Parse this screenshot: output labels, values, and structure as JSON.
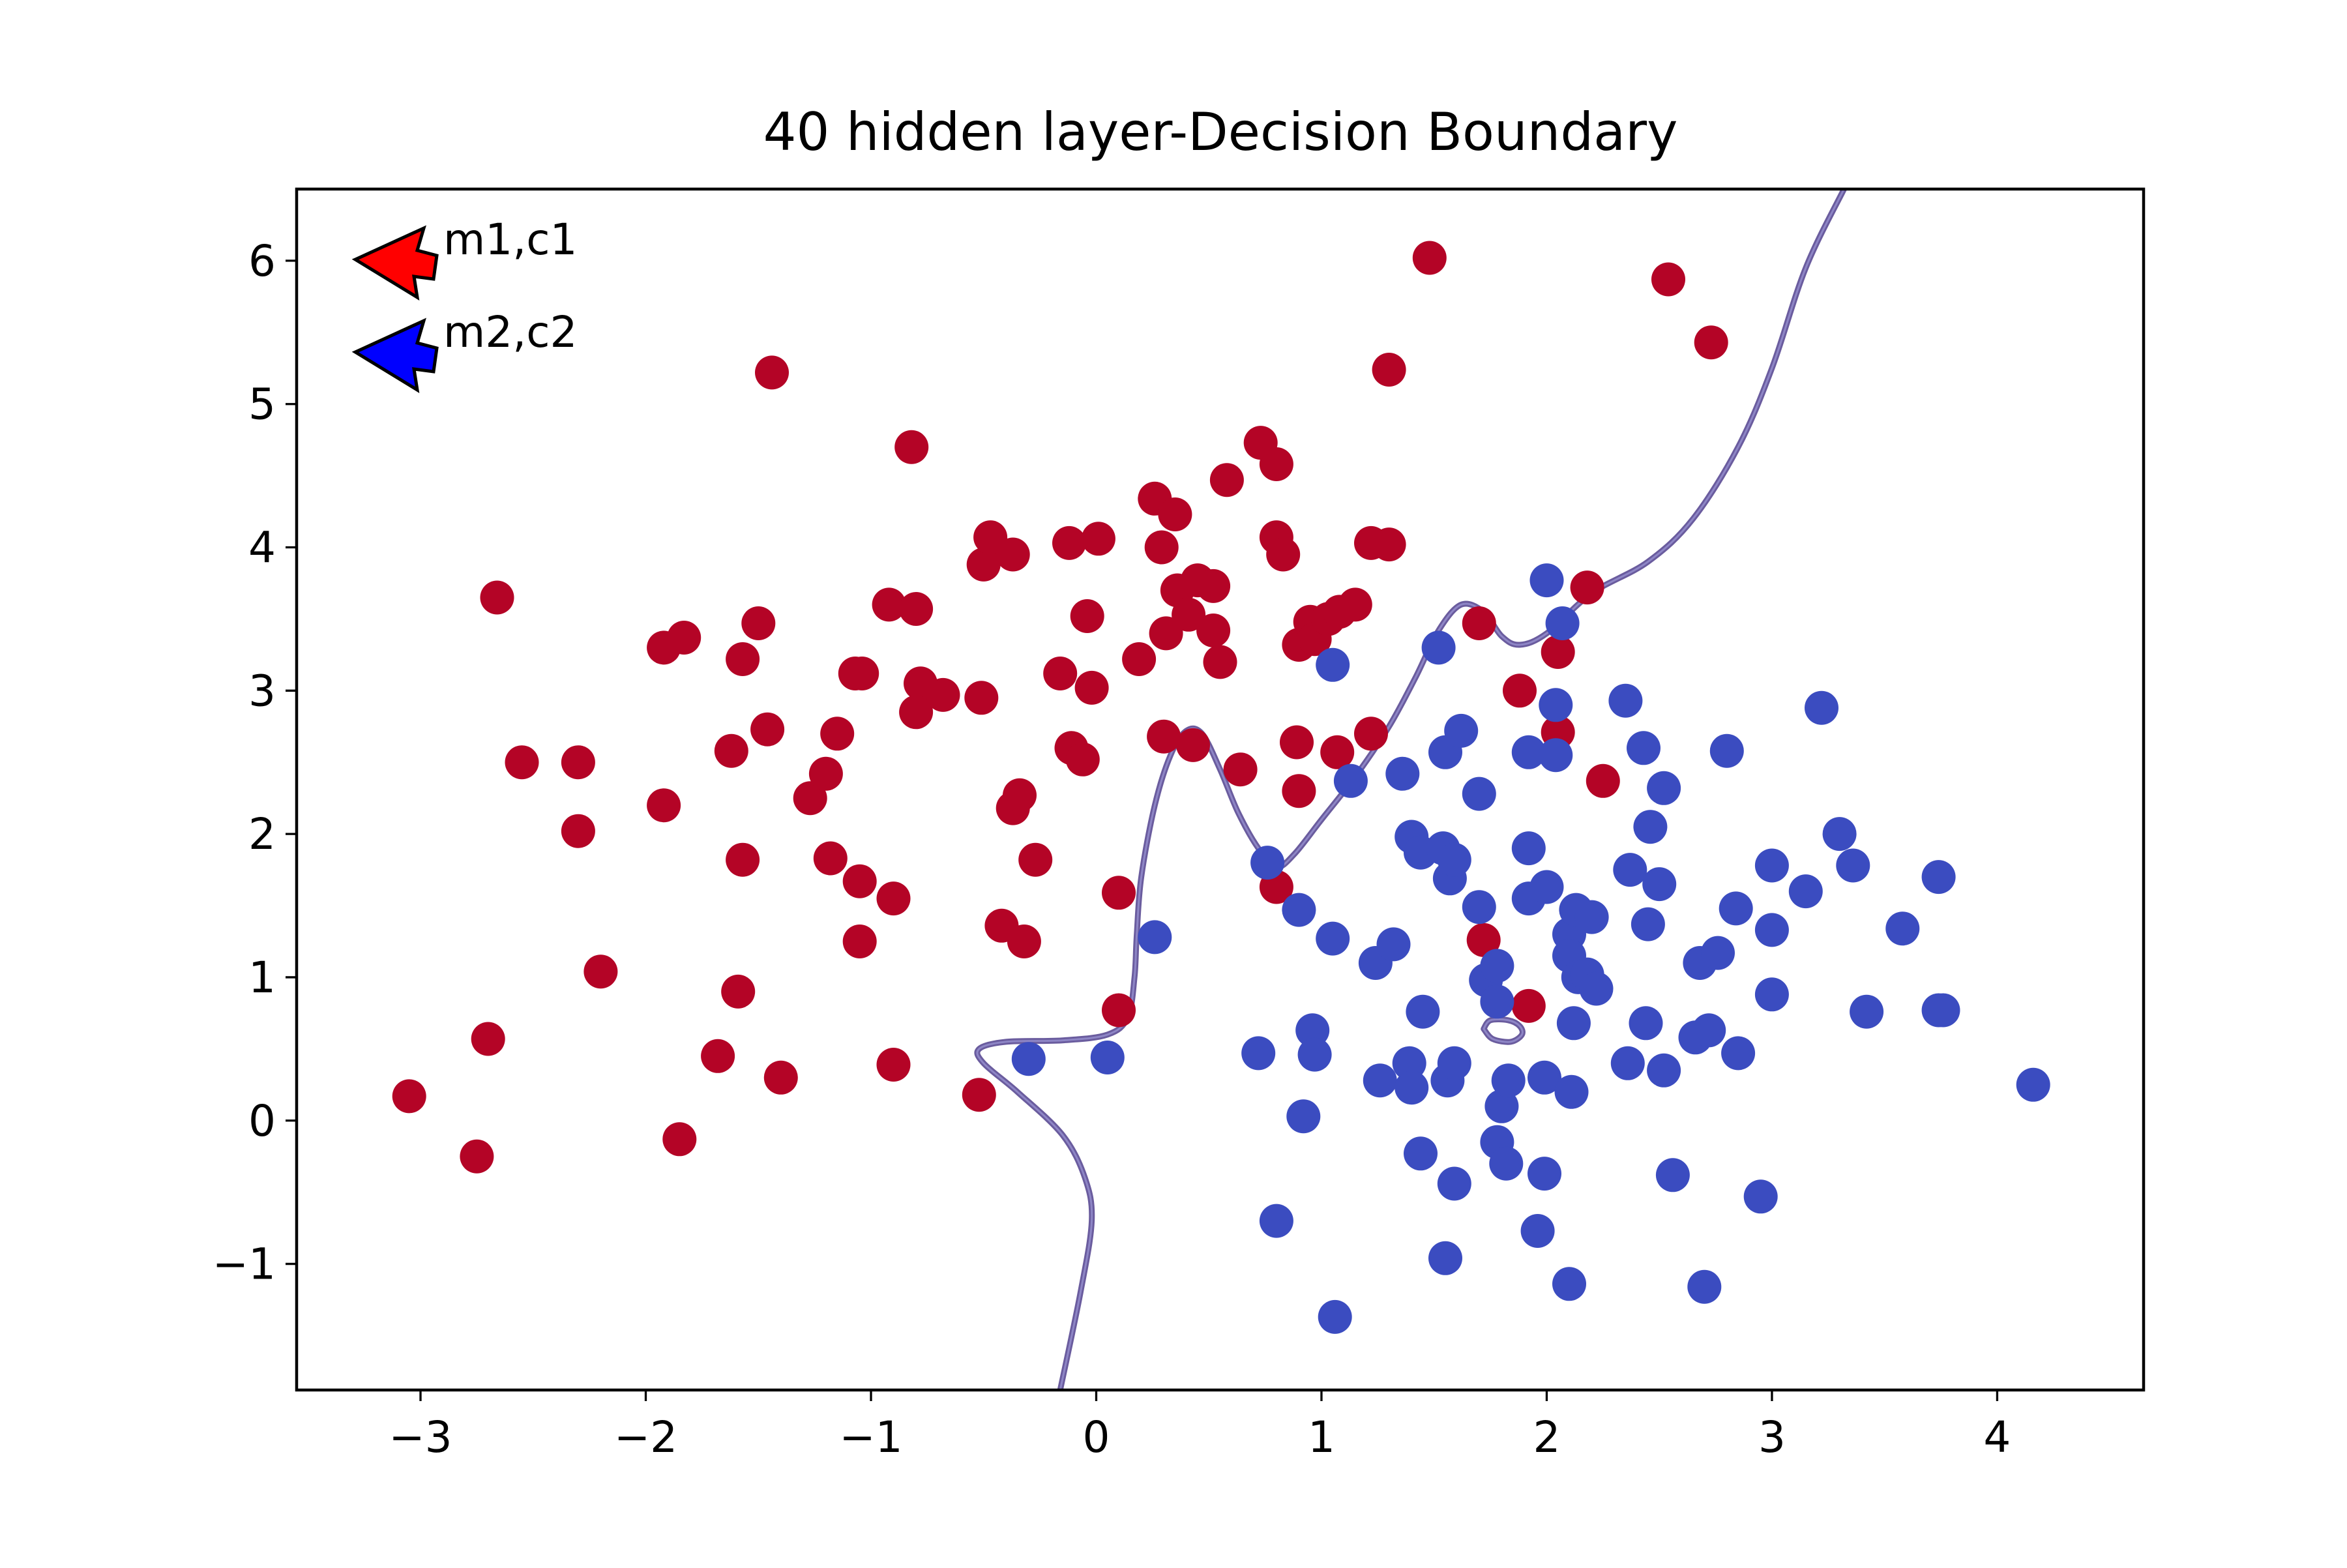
{
  "chart_data": {
    "type": "scatter",
    "title": "40 hidden layer-Decision Boundary",
    "xlabel": "",
    "ylabel": "",
    "xlim": [
      -3.55,
      4.65
    ],
    "ylim": [
      -1.88,
      6.5
    ],
    "xticks": [
      {
        "value": -3,
        "label": "−3"
      },
      {
        "value": -2,
        "label": "−2"
      },
      {
        "value": -1,
        "label": "−1"
      },
      {
        "value": 0,
        "label": "0"
      },
      {
        "value": 1,
        "label": "1"
      },
      {
        "value": 2,
        "label": "2"
      },
      {
        "value": 3,
        "label": "3"
      },
      {
        "value": 4,
        "label": "4"
      }
    ],
    "yticks": [
      {
        "value": -1,
        "label": "−1"
      },
      {
        "value": 0,
        "label": "0"
      },
      {
        "value": 1,
        "label": "1"
      },
      {
        "value": 2,
        "label": "2"
      },
      {
        "value": 3,
        "label": "3"
      },
      {
        "value": 4,
        "label": "4"
      },
      {
        "value": 5,
        "label": "5"
      },
      {
        "value": 6,
        "label": "6"
      }
    ],
    "grid": false,
    "legend_position": "top-left",
    "legend": [
      {
        "label": "m1,c1",
        "color": "#ff0000",
        "marker": "arrow-left"
      },
      {
        "label": "m2,c2",
        "color": "#0000ff",
        "marker": "arrow-left"
      }
    ],
    "colors": {
      "class0": "#b40426",
      "class1": "#3b4cc0",
      "boundary": "#6a5c9e"
    },
    "series": [
      {
        "class": 0,
        "color": "#b40426",
        "points": [
          [
            -3.05,
            0.17
          ],
          [
            -2.75,
            -0.25
          ],
          [
            -2.7,
            0.57
          ],
          [
            -2.66,
            3.65
          ],
          [
            -2.55,
            2.5
          ],
          [
            -2.3,
            2.5
          ],
          [
            -2.3,
            2.02
          ],
          [
            -2.2,
            1.04
          ],
          [
            -1.92,
            3.3
          ],
          [
            -1.92,
            2.2
          ],
          [
            -1.83,
            3.37
          ],
          [
            -1.85,
            -0.13
          ],
          [
            -1.68,
            0.45
          ],
          [
            -1.62,
            2.58
          ],
          [
            -1.57,
            3.22
          ],
          [
            -1.57,
            1.82
          ],
          [
            -1.59,
            0.9
          ],
          [
            -1.5,
            3.47
          ],
          [
            -1.46,
            2.73
          ],
          [
            -1.44,
            5.22
          ],
          [
            -1.4,
            0.3
          ],
          [
            -1.27,
            2.25
          ],
          [
            -1.2,
            2.42
          ],
          [
            -1.18,
            1.83
          ],
          [
            -1.15,
            2.7
          ],
          [
            -1.07,
            3.12
          ],
          [
            -1.04,
            3.12
          ],
          [
            -1.05,
            1.67
          ],
          [
            -1.05,
            1.25
          ],
          [
            -0.92,
            3.6
          ],
          [
            -0.9,
            1.55
          ],
          [
            -0.9,
            0.39
          ],
          [
            -0.82,
            4.7
          ],
          [
            -0.8,
            3.57
          ],
          [
            -0.78,
            3.05
          ],
          [
            -0.8,
            2.85
          ],
          [
            -0.68,
            2.97
          ],
          [
            -0.51,
            2.95
          ],
          [
            -0.5,
            3.88
          ],
          [
            -0.47,
            4.07
          ],
          [
            -0.42,
            1.36
          ],
          [
            -0.37,
            3.95
          ],
          [
            -0.37,
            2.18
          ],
          [
            -0.34,
            2.27
          ],
          [
            -0.32,
            1.25
          ],
          [
            -0.27,
            1.82
          ],
          [
            -0.52,
            0.18
          ],
          [
            -0.16,
            3.12
          ],
          [
            -0.12,
            4.03
          ],
          [
            -0.11,
            2.6
          ],
          [
            -0.06,
            2.52
          ],
          [
            -0.04,
            3.52
          ],
          [
            -0.02,
            3.02
          ],
          [
            0.01,
            4.06
          ],
          [
            0.1,
            1.59
          ],
          [
            0.1,
            0.77
          ],
          [
            0.19,
            3.22
          ],
          [
            0.26,
            4.34
          ],
          [
            0.29,
            4.0
          ],
          [
            0.31,
            3.4
          ],
          [
            0.3,
            2.68
          ],
          [
            0.35,
            4.23
          ],
          [
            0.36,
            3.7
          ],
          [
            0.41,
            3.53
          ],
          [
            0.43,
            2.62
          ],
          [
            0.45,
            3.77
          ],
          [
            0.52,
            3.42
          ],
          [
            0.52,
            3.73
          ],
          [
            0.55,
            3.2
          ],
          [
            0.58,
            4.47
          ],
          [
            0.64,
            2.45
          ],
          [
            0.73,
            4.73
          ],
          [
            0.8,
            4.58
          ],
          [
            0.8,
            4.07
          ],
          [
            0.83,
            3.95
          ],
          [
            0.8,
            1.63
          ],
          [
            0.89,
            2.64
          ],
          [
            0.9,
            2.3
          ],
          [
            0.9,
            3.32
          ],
          [
            0.95,
            3.48
          ],
          [
            0.97,
            3.36
          ],
          [
            1.03,
            3.5
          ],
          [
            1.07,
            2.57
          ],
          [
            1.08,
            3.55
          ],
          [
            1.15,
            3.6
          ],
          [
            1.22,
            2.7
          ],
          [
            1.22,
            4.03
          ],
          [
            1.3,
            4.02
          ],
          [
            1.3,
            5.24
          ],
          [
            1.48,
            6.02
          ],
          [
            1.7,
            3.47
          ],
          [
            1.72,
            1.26
          ],
          [
            1.88,
            3.0
          ],
          [
            1.92,
            0.8
          ],
          [
            2.05,
            2.71
          ],
          [
            2.05,
            3.27
          ],
          [
            2.18,
            3.72
          ],
          [
            2.25,
            2.37
          ],
          [
            2.54,
            5.87
          ],
          [
            2.73,
            5.43
          ]
        ]
      },
      {
        "class": 1,
        "color": "#3b4cc0",
        "points": [
          [
            -0.3,
            0.43
          ],
          [
            0.05,
            0.44
          ],
          [
            0.26,
            1.28
          ],
          [
            0.72,
            0.47
          ],
          [
            0.76,
            1.8
          ],
          [
            0.8,
            -0.7
          ],
          [
            0.9,
            1.47
          ],
          [
            0.92,
            0.03
          ],
          [
            0.96,
            0.63
          ],
          [
            0.97,
            0.46
          ],
          [
            1.05,
            3.18
          ],
          [
            1.05,
            1.27
          ],
          [
            1.06,
            -1.37
          ],
          [
            1.13,
            2.37
          ],
          [
            1.24,
            1.1
          ],
          [
            1.26,
            0.28
          ],
          [
            1.32,
            1.23
          ],
          [
            1.36,
            2.42
          ],
          [
            1.39,
            0.4
          ],
          [
            1.4,
            0.23
          ],
          [
            1.4,
            1.98
          ],
          [
            1.44,
            1.87
          ],
          [
            1.44,
            -0.23
          ],
          [
            1.45,
            0.76
          ],
          [
            1.52,
            3.3
          ],
          [
            1.54,
            1.9
          ],
          [
            1.55,
            2.57
          ],
          [
            1.55,
            -0.96
          ],
          [
            1.56,
            0.28
          ],
          [
            1.57,
            1.69
          ],
          [
            1.59,
            1.82
          ],
          [
            1.59,
            0.4
          ],
          [
            1.59,
            -0.44
          ],
          [
            1.62,
            2.72
          ],
          [
            1.7,
            2.28
          ],
          [
            1.7,
            1.49
          ],
          [
            1.73,
            0.98
          ],
          [
            1.78,
            1.08
          ],
          [
            1.78,
            0.83
          ],
          [
            1.78,
            -0.15
          ],
          [
            1.8,
            0.1
          ],
          [
            1.82,
            -0.3
          ],
          [
            1.83,
            0.28
          ],
          [
            1.92,
            2.57
          ],
          [
            1.92,
            1.9
          ],
          [
            1.92,
            1.55
          ],
          [
            1.96,
            -0.77
          ],
          [
            2.0,
            3.77
          ],
          [
            2.0,
            1.63
          ],
          [
            1.99,
            0.3
          ],
          [
            1.99,
            -0.37
          ],
          [
            2.04,
            2.9
          ],
          [
            2.04,
            2.55
          ],
          [
            2.07,
            3.47
          ],
          [
            2.1,
            1.3
          ],
          [
            2.1,
            1.15
          ],
          [
            2.11,
            0.2
          ],
          [
            2.12,
            0.68
          ],
          [
            2.13,
            1.47
          ],
          [
            2.14,
            1.0
          ],
          [
            2.18,
            1.02
          ],
          [
            2.2,
            1.42
          ],
          [
            2.22,
            0.92
          ],
          [
            2.1,
            -1.14
          ],
          [
            2.35,
            2.93
          ],
          [
            2.36,
            0.4
          ],
          [
            2.37,
            1.75
          ],
          [
            2.43,
            2.6
          ],
          [
            2.44,
            0.68
          ],
          [
            2.45,
            1.37
          ],
          [
            2.46,
            2.05
          ],
          [
            2.5,
            1.65
          ],
          [
            2.52,
            2.32
          ],
          [
            2.52,
            0.35
          ],
          [
            2.56,
            -0.38
          ],
          [
            2.66,
            0.58
          ],
          [
            2.68,
            1.1
          ],
          [
            2.7,
            -1.16
          ],
          [
            2.72,
            0.63
          ],
          [
            2.76,
            1.17
          ],
          [
            2.8,
            2.58
          ],
          [
            2.84,
            1.48
          ],
          [
            2.85,
            0.47
          ],
          [
            2.95,
            -0.53
          ],
          [
            3.0,
            1.78
          ],
          [
            3.0,
            0.88
          ],
          [
            3.0,
            1.33
          ],
          [
            3.15,
            1.6
          ],
          [
            3.22,
            2.88
          ],
          [
            3.3,
            2.0
          ],
          [
            3.36,
            1.78
          ],
          [
            3.42,
            0.76
          ],
          [
            3.58,
            1.34
          ],
          [
            3.74,
            1.7
          ],
          [
            3.74,
            0.77
          ],
          [
            3.76,
            0.77
          ],
          [
            4.16,
            0.25
          ]
        ]
      }
    ],
    "decision_boundary": {
      "main_curve": [
        [
          -0.16,
          -1.88
        ],
        [
          -0.07,
          -1.2
        ],
        [
          -0.02,
          -0.7
        ],
        [
          -0.05,
          -0.4
        ],
        [
          -0.15,
          -0.1
        ],
        [
          -0.35,
          0.2
        ],
        [
          -0.5,
          0.4
        ],
        [
          -0.52,
          0.5
        ],
        [
          -0.4,
          0.55
        ],
        [
          -0.15,
          0.56
        ],
        [
          0.05,
          0.6
        ],
        [
          0.14,
          0.72
        ],
        [
          0.17,
          1.0
        ],
        [
          0.18,
          1.3
        ],
        [
          0.2,
          1.7
        ],
        [
          0.26,
          2.2
        ],
        [
          0.33,
          2.55
        ],
        [
          0.4,
          2.72
        ],
        [
          0.47,
          2.7
        ],
        [
          0.55,
          2.45
        ],
        [
          0.63,
          2.15
        ],
        [
          0.72,
          1.9
        ],
        [
          0.8,
          1.77
        ],
        [
          0.88,
          1.86
        ],
        [
          1.0,
          2.1
        ],
        [
          1.15,
          2.4
        ],
        [
          1.3,
          2.75
        ],
        [
          1.42,
          3.1
        ],
        [
          1.52,
          3.42
        ],
        [
          1.62,
          3.6
        ],
        [
          1.72,
          3.55
        ],
        [
          1.8,
          3.38
        ],
        [
          1.88,
          3.32
        ],
        [
          2.0,
          3.4
        ],
        [
          2.2,
          3.68
        ],
        [
          2.45,
          3.9
        ],
        [
          2.65,
          4.2
        ],
        [
          2.85,
          4.7
        ],
        [
          3.0,
          5.25
        ],
        [
          3.15,
          5.95
        ],
        [
          3.32,
          6.5
        ]
      ],
      "islands": [
        [
          [
            1.72,
            0.64
          ],
          [
            1.76,
            0.57
          ],
          [
            1.84,
            0.55
          ],
          [
            1.89,
            0.6
          ],
          [
            1.88,
            0.66
          ],
          [
            1.83,
            0.7
          ],
          [
            1.75,
            0.7
          ],
          [
            1.72,
            0.64
          ]
        ]
      ]
    }
  }
}
